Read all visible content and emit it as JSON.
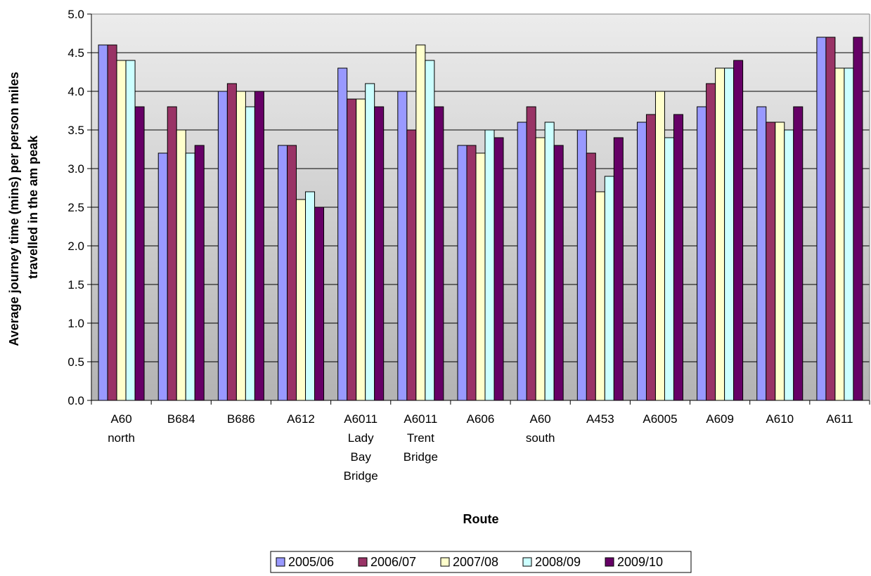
{
  "chart_data": {
    "type": "bar",
    "title": "",
    "xlabel": "Route",
    "ylabel_lines": [
      "Average journey time (mins) per person miles",
      "travelled in the am peak"
    ],
    "ylim": [
      0,
      5
    ],
    "yticks": [
      "0.0",
      "0.5",
      "1.0",
      "1.5",
      "2.0",
      "2.5",
      "3.0",
      "3.5",
      "4.0",
      "4.5",
      "5.0"
    ],
    "grid": true,
    "legend_position": "bottom",
    "categories": [
      [
        "A60",
        "north"
      ],
      [
        "B684"
      ],
      [
        "B686"
      ],
      [
        "A612"
      ],
      [
        "A6011",
        "Lady",
        "Bay",
        "Bridge"
      ],
      [
        "A6011",
        "Trent",
        "Bridge"
      ],
      [
        "A606"
      ],
      [
        "A60",
        "south"
      ],
      [
        "A453"
      ],
      [
        "A6005"
      ],
      [
        "A609"
      ],
      [
        "A610"
      ],
      [
        "A611"
      ]
    ],
    "series": [
      {
        "name": "2005/06",
        "color": "#9999FF",
        "values": [
          4.6,
          3.2,
          4.0,
          3.3,
          4.3,
          4.0,
          3.3,
          3.6,
          3.5,
          3.6,
          3.8,
          3.8,
          4.7
        ]
      },
      {
        "name": "2006/07",
        "color": "#993366",
        "values": [
          4.6,
          3.8,
          4.1,
          3.3,
          3.9,
          3.5,
          3.3,
          3.8,
          3.2,
          3.7,
          4.1,
          3.6,
          4.7
        ]
      },
      {
        "name": "2007/08",
        "color": "#FFFFCC",
        "values": [
          4.4,
          3.5,
          4.0,
          2.6,
          3.9,
          4.6,
          3.2,
          3.4,
          2.7,
          4.0,
          4.3,
          3.6,
          4.3
        ]
      },
      {
        "name": "2008/09",
        "color": "#CCFFFF",
        "values": [
          4.4,
          3.2,
          3.8,
          2.7,
          4.1,
          4.4,
          3.5,
          3.6,
          2.9,
          3.4,
          4.3,
          3.5,
          4.3
        ]
      },
      {
        "name": "2009/10",
        "color": "#660066",
        "values": [
          3.8,
          3.3,
          4.0,
          2.5,
          3.8,
          3.8,
          3.4,
          3.3,
          3.4,
          3.7,
          4.4,
          3.8,
          4.7
        ]
      }
    ]
  }
}
